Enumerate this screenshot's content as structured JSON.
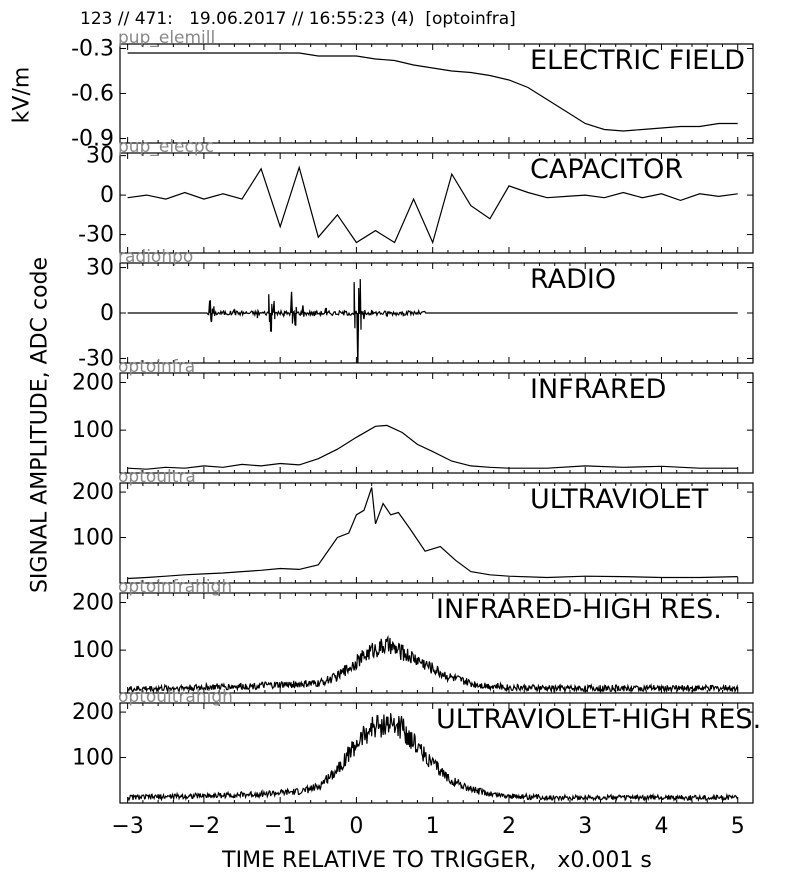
{
  "header": "123 // 471:   19.06.2017 // 16:55:23 (4)  [optoinfra]",
  "ylabel_top": "kV/m",
  "ylabel_main": "SIGNAL AMPLITUDE,  ADC code",
  "xlabel": "TIME RELATIVE TO TRIGGER,   x0.001 s",
  "chart_data": [
    {
      "type": "line",
      "channel": "pup_elemill",
      "title": "ELECTRIC FIELD",
      "ylim": [
        -0.93,
        -0.27
      ],
      "yticks": [
        -0.3,
        -0.6,
        -0.9
      ],
      "ytick_labels": [
        "-0.3",
        "-0.6",
        "-0.9"
      ],
      "x": [
        -3.0,
        -2.75,
        -2.5,
        -2.25,
        -2.0,
        -1.75,
        -1.5,
        -1.25,
        -1.0,
        -0.75,
        -0.5,
        -0.25,
        0.0,
        0.25,
        0.5,
        0.75,
        1.0,
        1.25,
        1.5,
        1.75,
        2.0,
        2.25,
        2.5,
        2.75,
        3.0,
        3.25,
        3.5,
        3.75,
        4.0,
        4.25,
        4.5,
        4.75,
        5.0
      ],
      "y": [
        -0.33,
        -0.33,
        -0.33,
        -0.33,
        -0.33,
        -0.33,
        -0.33,
        -0.33,
        -0.33,
        -0.33,
        -0.35,
        -0.35,
        -0.35,
        -0.37,
        -0.38,
        -0.41,
        -0.43,
        -0.45,
        -0.46,
        -0.48,
        -0.51,
        -0.56,
        -0.64,
        -0.72,
        -0.8,
        -0.84,
        -0.85,
        -0.84,
        -0.83,
        -0.82,
        -0.82,
        -0.8,
        -0.8
      ]
    },
    {
      "type": "line",
      "channel": "pup_elecpc",
      "title": "CAPACITOR",
      "ylim": [
        -44,
        32
      ],
      "yticks": [
        30,
        0,
        -30
      ],
      "ytick_labels": [
        "30",
        "0",
        "-30"
      ],
      "x": [
        -3.0,
        -2.75,
        -2.5,
        -2.25,
        -2.0,
        -1.75,
        -1.5,
        -1.25,
        -1.0,
        -0.75,
        -0.5,
        -0.25,
        0.0,
        0.25,
        0.5,
        0.75,
        1.0,
        1.25,
        1.5,
        1.75,
        2.0,
        2.25,
        2.5,
        2.75,
        3.0,
        3.25,
        3.5,
        3.75,
        4.0,
        4.25,
        4.5,
        4.75,
        5.0
      ],
      "y": [
        -2,
        0,
        -3,
        2,
        -3,
        1,
        -3,
        20,
        -24,
        21,
        -32,
        -15,
        -36,
        -27,
        -36,
        -3,
        -36,
        16,
        -8,
        -18,
        7,
        2,
        -2,
        -1,
        0,
        -2,
        2,
        -2,
        1,
        -4,
        1,
        -1,
        1
      ]
    },
    {
      "type": "line",
      "channel": "radiohpo",
      "title": "RADIO",
      "ylim": [
        -33,
        33
      ],
      "yticks": [
        30,
        0,
        -30
      ],
      "ytick_labels": [
        "30",
        "0",
        "-30"
      ],
      "x": [
        -3.0,
        -1.95,
        -1.92,
        -1.9,
        -1.87,
        -1.8,
        -1.6,
        -1.3,
        -1.15,
        -1.12,
        -1.08,
        -0.95,
        -0.85,
        -0.8,
        -0.7,
        -0.55,
        -0.4,
        -0.05,
        -0.03,
        0.02,
        0.05,
        0.1,
        0.2,
        0.4,
        0.6,
        0.9,
        5.0
      ],
      "y": [
        0,
        0,
        8,
        -6,
        4,
        0,
        2,
        -3,
        12,
        -12,
        8,
        -2,
        14,
        -8,
        5,
        -2,
        3,
        0,
        20,
        -33,
        22,
        -4,
        2,
        -2,
        1,
        0,
        0
      ]
    },
    {
      "type": "line",
      "channel": "optoinfra",
      "title": "INFRARED",
      "ylim": [
        10,
        220
      ],
      "yticks": [
        200,
        100
      ],
      "ytick_labels": [
        "200",
        "100"
      ],
      "x": [
        -3.0,
        -2.75,
        -2.5,
        -2.25,
        -2.0,
        -1.75,
        -1.5,
        -1.25,
        -1.0,
        -0.75,
        -0.5,
        -0.25,
        0.0,
        0.25,
        0.4,
        0.6,
        0.8,
        1.0,
        1.25,
        1.5,
        1.75,
        2.0,
        2.5,
        3.0,
        3.5,
        4.0,
        4.5,
        5.0
      ],
      "y": [
        20,
        18,
        22,
        20,
        25,
        22,
        28,
        25,
        30,
        27,
        40,
        60,
        85,
        108,
        110,
        95,
        70,
        55,
        35,
        25,
        22,
        20,
        20,
        25,
        22,
        24,
        20,
        20
      ]
    },
    {
      "type": "line",
      "channel": "optoultra",
      "title": "ULTRAVIOLET",
      "ylim": [
        0,
        220
      ],
      "yticks": [
        200,
        100
      ],
      "ytick_labels": [
        "200",
        "100"
      ],
      "x": [
        -3.0,
        -2.75,
        -2.5,
        -2.25,
        -2.0,
        -1.75,
        -1.5,
        -1.25,
        -1.0,
        -0.75,
        -0.5,
        -0.25,
        -0.1,
        0.0,
        0.1,
        0.2,
        0.25,
        0.35,
        0.45,
        0.55,
        0.7,
        0.9,
        1.1,
        1.3,
        1.5,
        1.75,
        2.0,
        2.5,
        3.0,
        3.5,
        4.0,
        4.5,
        5.0
      ],
      "y": [
        10,
        12,
        15,
        18,
        20,
        22,
        25,
        28,
        32,
        30,
        40,
        100,
        110,
        150,
        160,
        210,
        130,
        175,
        150,
        155,
        120,
        70,
        80,
        50,
        25,
        18,
        15,
        12,
        15,
        14,
        12,
        12,
        14
      ]
    },
    {
      "type": "line",
      "channel": "optoinfrahigh",
      "title": "INFRARED-HIGH RES.",
      "ylim": [
        10,
        220
      ],
      "yticks": [
        200,
        100
      ],
      "ytick_labels": [
        "200",
        "100"
      ],
      "x": [
        -3.0,
        -2.5,
        -2.0,
        -1.5,
        -1.0,
        -0.5,
        -0.25,
        0.0,
        0.2,
        0.4,
        0.6,
        0.8,
        1.0,
        1.2,
        1.5,
        1.75,
        2.0,
        2.5,
        3.0,
        3.5,
        4.0,
        4.5,
        5.0
      ],
      "y": [
        18,
        20,
        22,
        24,
        27,
        30,
        45,
        75,
        100,
        110,
        95,
        80,
        62,
        45,
        30,
        25,
        22,
        20,
        20,
        20,
        20,
        20,
        20
      ]
    },
    {
      "type": "line",
      "channel": "optoultrahigh",
      "title": "ULTRAVIOLET-HIGH RES.",
      "ylim": [
        0,
        220
      ],
      "yticks": [
        200,
        100
      ],
      "ytick_labels": [
        "200",
        "100"
      ],
      "x": [
        -3.0,
        -2.5,
        -2.0,
        -1.5,
        -1.0,
        -0.75,
        -0.5,
        -0.25,
        0.0,
        0.2,
        0.4,
        0.6,
        0.8,
        1.0,
        1.2,
        1.5,
        1.75,
        2.0,
        2.5,
        3.0,
        3.5,
        4.0,
        4.5,
        5.0
      ],
      "y": [
        12,
        14,
        16,
        18,
        22,
        25,
        35,
        75,
        130,
        165,
        175,
        165,
        125,
        85,
        55,
        30,
        20,
        15,
        12,
        12,
        12,
        12,
        12,
        12
      ]
    }
  ],
  "x_axis": {
    "xlim": [
      -3.1,
      5.2
    ],
    "xticks": [
      -3,
      -2,
      -1,
      0,
      1,
      2,
      3,
      4,
      5
    ],
    "xtick_labels": [
      "−3",
      "−2",
      "−1",
      "0",
      "1",
      "2",
      "3",
      "4",
      "5"
    ]
  }
}
